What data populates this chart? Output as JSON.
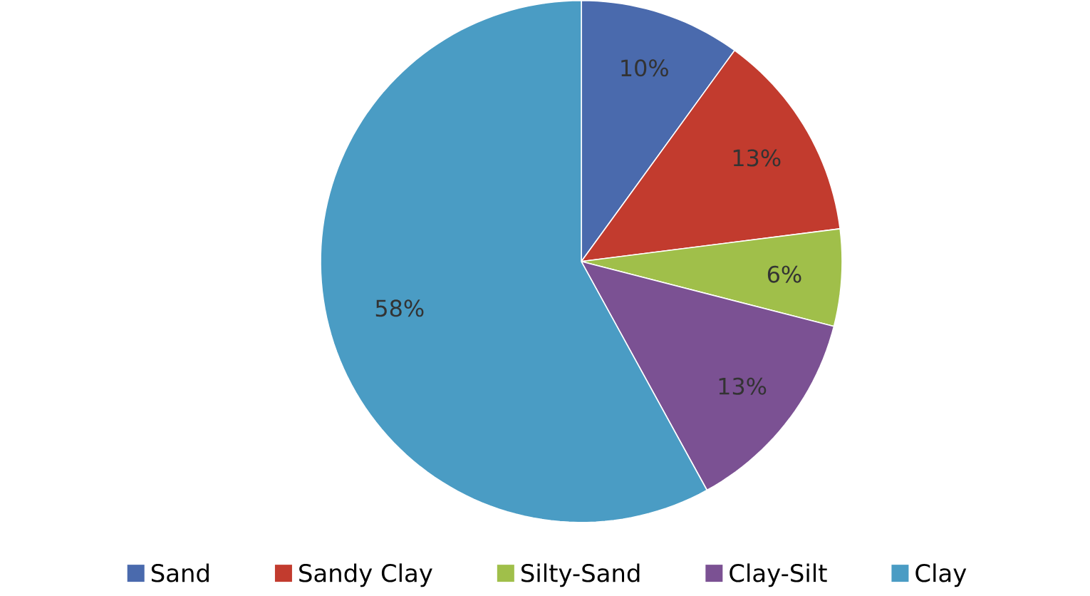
{
  "chart_data": {
    "type": "pie",
    "categories": [
      "Sand",
      "Sandy Clay",
      "Silty-Sand",
      "Clay-Silt",
      "Clay"
    ],
    "values": [
      10,
      13,
      6,
      13,
      58
    ],
    "colors": [
      "#4a6aad",
      "#c23b2e",
      "#a0bf4a",
      "#7b5193",
      "#4a9cc4"
    ],
    "value_labels": [
      "10%",
      "13%",
      "6%",
      "13%",
      "58%"
    ],
    "legend": "bottom"
  }
}
